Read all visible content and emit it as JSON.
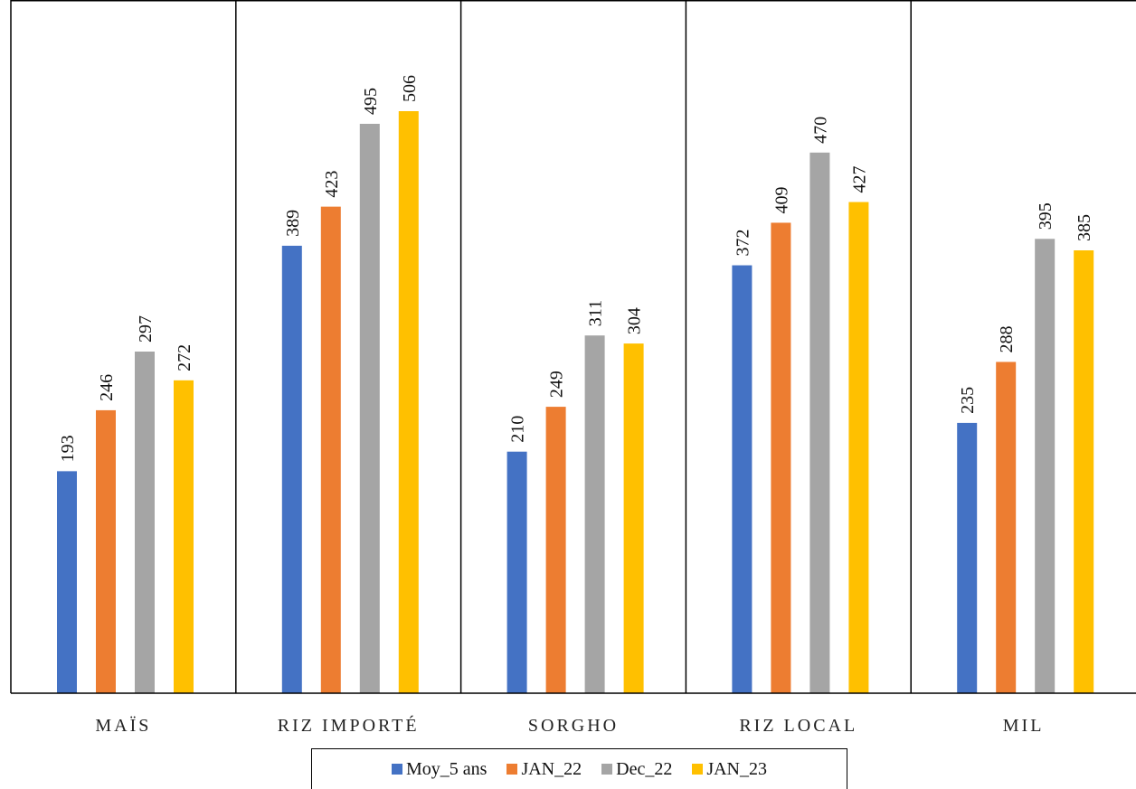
{
  "chart_data": {
    "type": "bar",
    "categories": [
      "MAÏS",
      "RIZ IMPORTÉ",
      "SORGHO",
      "RIZ LOCAL",
      "MIL"
    ],
    "series": [
      {
        "name": "Moy_5 ans",
        "color": "#4472C4",
        "values": [
          193,
          389,
          210,
          372,
          235
        ]
      },
      {
        "name": "JAN_22",
        "color": "#ED7D31",
        "values": [
          246,
          423,
          249,
          409,
          288
        ]
      },
      {
        "name": "Dec_22",
        "color": "#A5A5A5",
        "values": [
          297,
          495,
          311,
          470,
          395
        ]
      },
      {
        "name": "JAN_23",
        "color": "#FFC000",
        "values": [
          272,
          506,
          304,
          427,
          385
        ]
      }
    ],
    "ylim": [
      0,
      550
    ],
    "grid": false,
    "legend_position": "bottom",
    "title": "",
    "xlabel": "",
    "ylabel": ""
  }
}
